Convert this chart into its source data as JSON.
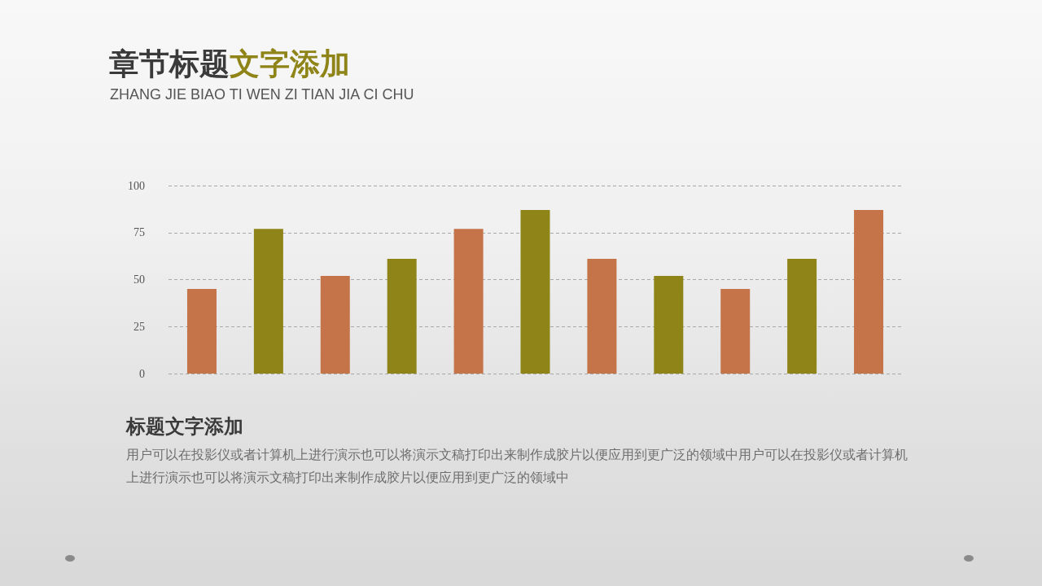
{
  "chart_data": {
    "type": "bar",
    "title": "章节标题文字添加",
    "subtitle": "ZHANG JIE BIAO TI WEN ZI TIAN JIA CI CHU",
    "annotations": [
      "标题文字添加",
      "用户可以在投影仪或者计算机上进行演示也可以将演示文稿打印出来制作成胶片以便应用到更广泛的领域中用户可以在投影仪或者计算机上进行演示也可以将演示文稿打印出来制作成胶片以便应用到更广泛的领域中"
    ],
    "categories": [
      null,
      null,
      null,
      null,
      null,
      null,
      null,
      null,
      null,
      null,
      null
    ],
    "values": [
      45,
      77,
      52,
      61,
      77,
      87,
      61,
      52,
      45,
      61,
      87
    ],
    "colors": [
      "#c5744a",
      "#8e8418",
      "#c5744a",
      "#8e8418",
      "#c5744a",
      "#8e8418",
      "#c5744a",
      "#8e8418",
      "#c5744a",
      "#8e8418",
      "#c5744a"
    ],
    "ylim": [
      0,
      100
    ],
    "yticks": [
      0,
      25,
      50,
      75,
      100
    ],
    "grid": "y",
    "tick_labels": "y"
  }
}
